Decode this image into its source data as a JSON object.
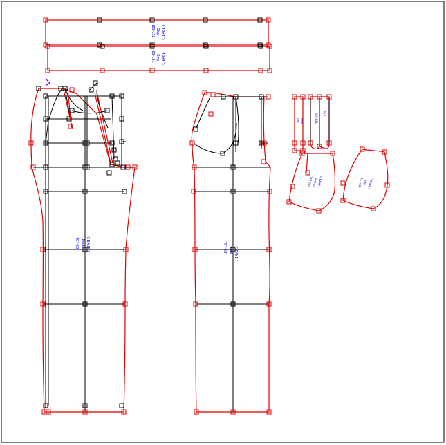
{
  "canvas": {
    "title": "",
    "colors": {
      "background": "#ffffff",
      "border": "#000000",
      "piece_outline": "#e00000",
      "grid_line": "#000000",
      "handle_black": "#000000",
      "handle_red": "#e00000",
      "label": "#0000cc",
      "violet_mark": "#8000ff"
    }
  },
  "pieces": [
    {
      "id": "waistband-top",
      "labels": [
        "Ɨ89-LSL",
        "Ɔlnp",
        "Ɩ ƎЯ∀Ǝ Ɔ"
      ]
    },
    {
      "id": "waistband-bottom",
      "labels": [
        "Ɨ89-LSL",
        "Ɔlnp",
        "Ɩ ƎЯ∀Ǝ Ɔ"
      ]
    },
    {
      "id": "back-leg",
      "labels": [
        "Ɩ89-LSL",
        "ʞɔɐq",
        "Ɩ ƎЯ∀Ǝ Ɔ"
      ]
    },
    {
      "id": "front-leg",
      "labels": [
        "Ɩ89-LSL",
        "ʇuoɹɟ",
        "Ɩ ƎЯ∀Ǝ Ɔ"
      ]
    },
    {
      "id": "belt-loop",
      "labels": [
        "Ɩ89",
        "dool"
      ]
    },
    {
      "id": "fly-strip",
      "labels": [
        "Ɩ89-LSL",
        "ʎlɟ ɐɹ"
      ]
    },
    {
      "id": "pocket-facing",
      "labels": [
        "Ɩ89-LSL",
        "ƃuᴉɔɐɟ",
        "Ɩ ƎЯ∀Ǝ Ɔ"
      ]
    },
    {
      "id": "pocket-bag",
      "labels": [
        "Ɩ89-LSL",
        "ƃɐq",
        "Ɩ ƎЯ∀Ǝ Ɔ"
      ]
    }
  ]
}
